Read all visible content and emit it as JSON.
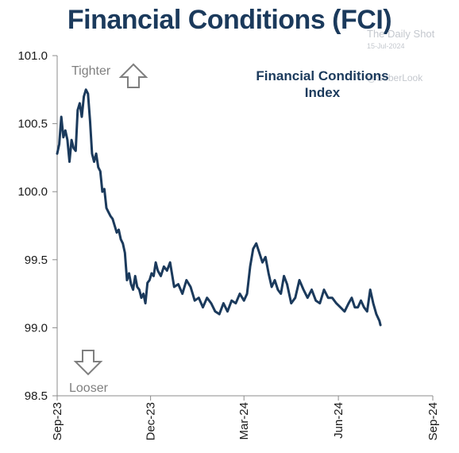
{
  "chart_data": {
    "type": "line",
    "title": "Financial Conditions (FCI)",
    "inset_label_lines": [
      "Financial Conditions",
      "Index"
    ],
    "annotations": {
      "tighter": "Tighter",
      "looser": "Looser"
    },
    "watermark": {
      "brand": "The Daily Shot",
      "date": "15-Jul-2024",
      "handle": "@SoberLook"
    },
    "xlabel": "",
    "ylabel": "",
    "ylim": [
      98.5,
      101.0
    ],
    "yticks": [
      101.0,
      100.5,
      100.0,
      99.5,
      99.0,
      98.5
    ],
    "ytick_labels": [
      "101.0",
      "100.5",
      "100.0",
      "99.5",
      "99.0",
      "98.5"
    ],
    "xlim": [
      "2023-09-01",
      "2024-09-01"
    ],
    "xticks": [
      "2023-09-01",
      "2023-12-01",
      "2024-03-01",
      "2024-06-01",
      "2024-09-01"
    ],
    "xtick_labels": [
      "Sep-23",
      "Dec-23",
      "Mar-24",
      "Jun-24",
      "Sep-24"
    ],
    "grid": false,
    "line_color": "#1b3a5c",
    "series": [
      {
        "x": [
          "2023-09-01",
          "2023-09-03",
          "2023-09-05",
          "2023-09-07",
          "2023-09-09",
          "2023-09-11",
          "2023-09-13",
          "2023-09-15",
          "2023-09-17",
          "2023-09-19",
          "2023-09-21",
          "2023-09-23",
          "2023-09-25",
          "2023-09-27",
          "2023-09-29",
          "2023-10-01",
          "2023-10-03",
          "2023-10-05",
          "2023-10-07",
          "2023-10-09",
          "2023-10-11",
          "2023-10-13",
          "2023-10-15",
          "2023-10-17",
          "2023-10-19",
          "2023-10-21",
          "2023-10-23",
          "2023-10-25",
          "2023-10-27",
          "2023-10-29",
          "2023-10-31",
          "2023-11-02",
          "2023-11-04",
          "2023-11-06",
          "2023-11-08",
          "2023-11-10",
          "2023-11-12",
          "2023-11-14",
          "2023-11-16",
          "2023-11-18",
          "2023-11-20",
          "2023-11-22",
          "2023-11-24",
          "2023-11-26",
          "2023-11-28",
          "2023-11-30",
          "2023-12-02",
          "2023-12-04",
          "2023-12-06",
          "2023-12-08",
          "2023-12-11",
          "2023-12-14",
          "2023-12-17",
          "2023-12-20",
          "2023-12-24",
          "2023-12-28",
          "2024-01-01",
          "2024-01-05",
          "2024-01-09",
          "2024-01-13",
          "2024-01-17",
          "2024-01-21",
          "2024-01-25",
          "2024-01-29",
          "2024-02-02",
          "2024-02-06",
          "2024-02-10",
          "2024-02-14",
          "2024-02-18",
          "2024-02-22",
          "2024-02-26",
          "2024-03-01",
          "2024-03-04",
          "2024-03-07",
          "2024-03-10",
          "2024-03-13",
          "2024-03-16",
          "2024-03-19",
          "2024-03-22",
          "2024-03-25",
          "2024-03-28",
          "2024-03-31",
          "2024-04-03",
          "2024-04-06",
          "2024-04-09",
          "2024-04-12",
          "2024-04-16",
          "2024-04-20",
          "2024-04-24",
          "2024-04-28",
          "2024-05-02",
          "2024-05-06",
          "2024-05-10",
          "2024-05-14",
          "2024-05-18",
          "2024-05-22",
          "2024-05-26",
          "2024-05-30",
          "2024-06-03",
          "2024-06-07",
          "2024-06-11",
          "2024-06-14",
          "2024-06-17",
          "2024-06-20",
          "2024-06-23",
          "2024-06-26",
          "2024-06-29",
          "2024-07-02",
          "2024-07-05",
          "2024-07-08",
          "2024-07-11",
          "2024-07-12"
        ],
        "values": [
          100.28,
          100.35,
          100.55,
          100.4,
          100.45,
          100.38,
          100.22,
          100.38,
          100.32,
          100.3,
          100.6,
          100.65,
          100.55,
          100.7,
          100.75,
          100.72,
          100.52,
          100.28,
          100.22,
          100.28,
          100.18,
          100.15,
          100.0,
          100.02,
          99.88,
          99.85,
          99.82,
          99.8,
          99.75,
          99.7,
          99.72,
          99.65,
          99.62,
          99.55,
          99.35,
          99.4,
          99.32,
          99.28,
          99.38,
          99.3,
          99.28,
          99.22,
          99.25,
          99.18,
          99.33,
          99.35,
          99.4,
          99.38,
          99.48,
          99.42,
          99.38,
          99.45,
          99.42,
          99.48,
          99.3,
          99.32,
          99.25,
          99.35,
          99.3,
          99.2,
          99.22,
          99.15,
          99.22,
          99.18,
          99.12,
          99.1,
          99.18,
          99.12,
          99.2,
          99.18,
          99.25,
          99.2,
          99.25,
          99.45,
          99.58,
          99.62,
          99.55,
          99.48,
          99.52,
          99.4,
          99.3,
          99.35,
          99.28,
          99.25,
          99.38,
          99.32,
          99.18,
          99.22,
          99.35,
          99.28,
          99.22,
          99.28,
          99.2,
          99.18,
          99.28,
          99.22,
          99.22,
          99.18,
          99.15,
          99.12,
          99.18,
          99.22,
          99.15,
          99.15,
          99.2,
          99.15,
          99.12,
          99.28,
          99.18,
          99.1,
          99.05,
          99.02
        ]
      }
    ]
  }
}
